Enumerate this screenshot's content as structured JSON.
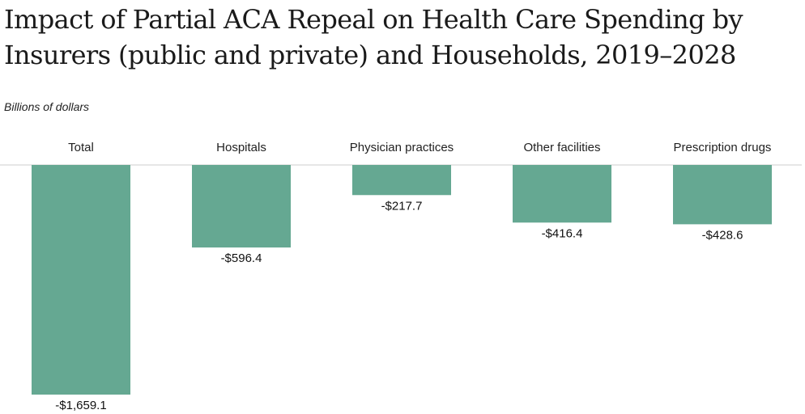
{
  "chart_data": {
    "type": "bar",
    "title": "Impact of Partial ACA Repeal on Health Care Spending by Insurers (public and private) and Households, 2019–2028",
    "subtitle": "Billions of dollars",
    "categories": [
      "Total",
      "Hospitals",
      "Physician practices",
      "Other facilities",
      "Prescription drugs"
    ],
    "values": [
      -1659.1,
      -596.4,
      -217.7,
      -416.4,
      -428.6
    ],
    "value_labels": [
      "-$1,659.1",
      "-$596.4",
      "-$217.7",
      "-$416.4",
      "-$428.6"
    ],
    "ylim": [
      -1659.1,
      0
    ],
    "bar_color": "#65a892",
    "axis_color": "#cccccc"
  }
}
